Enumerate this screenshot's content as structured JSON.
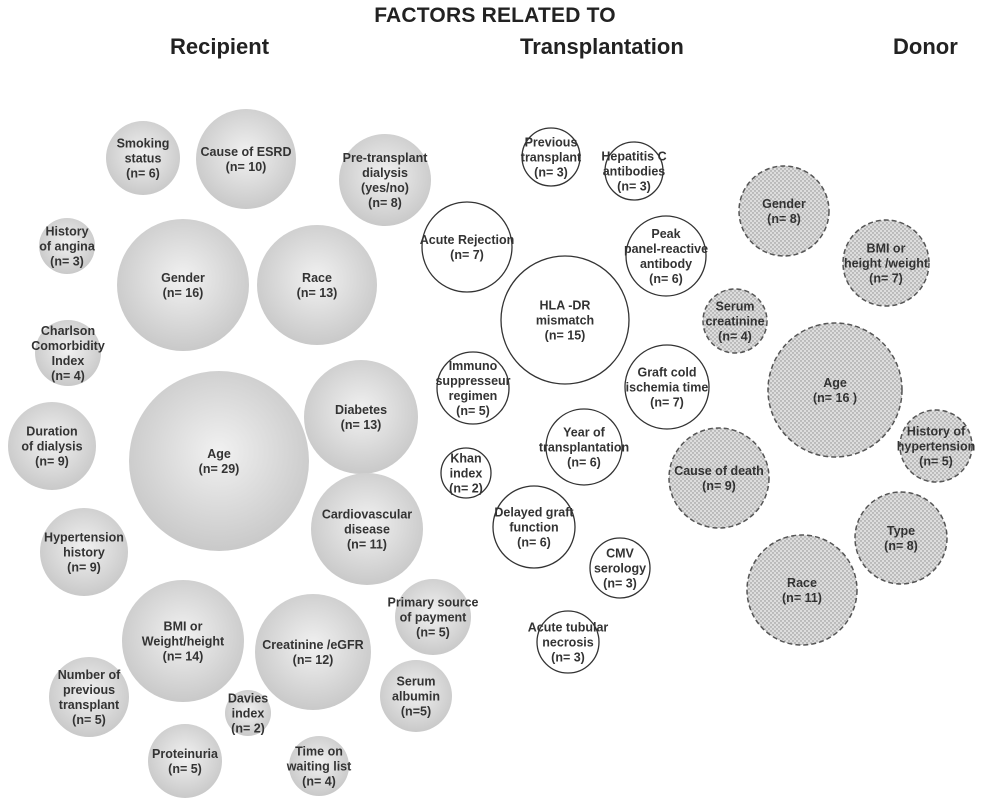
{
  "title": "FACTORS RELATED TO",
  "groups": {
    "recipient": "Recipient",
    "transplantation": "Transplantation",
    "donor": "Donor"
  },
  "colors": {
    "recipient_fill_light": "#f1f1f1",
    "recipient_fill_dark": "#c9c9c9",
    "transplantation_stroke": "#333333",
    "donor_fill": "#dddddd",
    "donor_stroke": "#555555",
    "text": "#333333"
  },
  "recipient": [
    {
      "id": "smoking-status",
      "lines": [
        "Smoking",
        "status",
        "(n= 6)"
      ]
    },
    {
      "id": "cause-of-esrd",
      "lines": [
        "Cause of ESRD",
        "(n= 10)"
      ]
    },
    {
      "id": "pre-transplant-dialysis",
      "lines": [
        "Pre-transplant",
        "dialysis",
        "(yes/no)",
        "(n= 8)"
      ]
    },
    {
      "id": "history-of-angina",
      "lines": [
        "History",
        "of angina",
        "(n= 3)"
      ]
    },
    {
      "id": "gender",
      "lines": [
        "Gender",
        "(n= 16)"
      ]
    },
    {
      "id": "race",
      "lines": [
        "Race",
        "(n= 13)"
      ]
    },
    {
      "id": "charlson-comorbidity-index",
      "lines": [
        "Charlson",
        "Comorbidity",
        "Index",
        "(n= 4)"
      ]
    },
    {
      "id": "diabetes",
      "lines": [
        "Diabetes",
        "(n= 13)"
      ]
    },
    {
      "id": "duration-of-dialysis",
      "lines": [
        "Duration",
        "of dialysis",
        "(n= 9)"
      ]
    },
    {
      "id": "age",
      "lines": [
        "Age",
        "(n= 29)"
      ]
    },
    {
      "id": "cardiovascular-disease",
      "lines": [
        "Cardiovascular",
        "disease",
        "(n= 11)"
      ]
    },
    {
      "id": "hypertension-history",
      "lines": [
        "Hypertension",
        "history",
        "(n= 9)"
      ]
    },
    {
      "id": "primary-source-of-payment",
      "lines": [
        "Primary source",
        "of payment",
        "(n= 5)"
      ]
    },
    {
      "id": "bmi-or-weight-height",
      "lines": [
        "BMI or",
        "Weight/height",
        "(n= 14)"
      ]
    },
    {
      "id": "creatinine-egfr",
      "lines": [
        "Creatinine /eGFR",
        "(n= 12)"
      ]
    },
    {
      "id": "number-of-previous-transplant",
      "lines": [
        "Number of",
        "previous",
        "transplant",
        "(n= 5)"
      ]
    },
    {
      "id": "serum-albumin",
      "lines": [
        "Serum",
        "albumin",
        "(n=5)"
      ]
    },
    {
      "id": "davies-index",
      "lines": [
        "Davies",
        "index",
        "(n= 2)"
      ]
    },
    {
      "id": "proteinuria",
      "lines": [
        "Proteinuria",
        "(n= 5)"
      ]
    },
    {
      "id": "time-on-waiting-list",
      "lines": [
        "Time on",
        "waiting list",
        "(n= 4)"
      ]
    }
  ],
  "transplantation": [
    {
      "id": "previous-transplant",
      "lines": [
        "Previous",
        "transplant",
        "(n= 3)"
      ]
    },
    {
      "id": "hepatitis-c-antibodies",
      "lines": [
        "Hepatitis C",
        "antibodies",
        "(n= 3)"
      ]
    },
    {
      "id": "acute-rejection",
      "lines": [
        "Acute Rejection",
        "(n= 7)"
      ]
    },
    {
      "id": "peak-panel-reactive-antibody",
      "lines": [
        "Peak",
        "panel-reactive",
        "antibody",
        "(n= 6)"
      ]
    },
    {
      "id": "hla-dr-mismatch",
      "lines": [
        "HLA -DR",
        "mismatch",
        "(n= 15)"
      ]
    },
    {
      "id": "immuno-suppresseur-regimen",
      "lines": [
        "Immuno",
        "suppresseur",
        "regimen",
        "(n= 5)"
      ]
    },
    {
      "id": "graft-cold-ischemia-time",
      "lines": [
        "Graft cold",
        "ischemia time",
        "(n= 7)"
      ]
    },
    {
      "id": "year-of-transplantation",
      "lines": [
        "Year of",
        "transplantation",
        "(n= 6)"
      ]
    },
    {
      "id": "khan-index",
      "lines": [
        "Khan",
        "index",
        "(n= 2)"
      ]
    },
    {
      "id": "delayed-graft-function",
      "lines": [
        "Delayed graft",
        "function",
        "(n= 6)"
      ]
    },
    {
      "id": "cmv-serology",
      "lines": [
        "CMV",
        "serology",
        "(n= 3)"
      ]
    },
    {
      "id": "acute-tubular-necrosis",
      "lines": [
        "Acute tubular",
        "necrosis",
        "(n= 3)"
      ]
    }
  ],
  "donor": [
    {
      "id": "gender",
      "lines": [
        "Gender",
        "(n= 8)"
      ]
    },
    {
      "id": "bmi-or-height-weight",
      "lines": [
        "BMI or",
        "height /weight",
        "(n= 7)"
      ]
    },
    {
      "id": "serum-creatinine",
      "lines": [
        "Serum",
        "creatinine",
        "(n= 4)"
      ]
    },
    {
      "id": "age",
      "lines": [
        "Age",
        "(n= 16 )"
      ]
    },
    {
      "id": "history-of-hypertension",
      "lines": [
        "History of",
        "hypertension",
        "(n= 5)"
      ]
    },
    {
      "id": "cause-of-death",
      "lines": [
        "Cause of death",
        "(n= 9)"
      ]
    },
    {
      "id": "type",
      "lines": [
        "Type",
        "(n= 8)"
      ]
    },
    {
      "id": "race",
      "lines": [
        "Race",
        "(n= 11)"
      ]
    }
  ]
}
